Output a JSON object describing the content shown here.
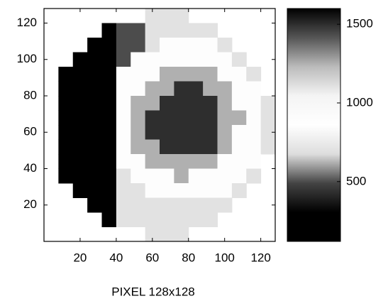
{
  "chart_data": {
    "type": "heatmap",
    "xlabel": "PIXEL 128x128",
    "xlim": [
      0,
      128
    ],
    "ylim": [
      0,
      128
    ],
    "xticks": [
      20,
      40,
      60,
      80,
      100,
      120
    ],
    "yticks": [
      20,
      40,
      60,
      80,
      100,
      120
    ],
    "x": [
      4,
      12,
      20,
      28,
      36,
      44,
      52,
      60,
      68,
      76,
      84,
      92,
      100,
      108,
      116,
      124
    ],
    "y": [
      4,
      12,
      20,
      28,
      36,
      44,
      52,
      60,
      68,
      76,
      84,
      92,
      100,
      108,
      116,
      124
    ],
    "z": [
      [
        null,
        null,
        null,
        null,
        null,
        null,
        null,
        700,
        700,
        700,
        null,
        null,
        null,
        null,
        null,
        null
      ],
      [
        null,
        null,
        null,
        null,
        250,
        500,
        500,
        700,
        700,
        700,
        700,
        700,
        null,
        null,
        null,
        null
      ],
      [
        null,
        null,
        null,
        250,
        250,
        500,
        500,
        700,
        900,
        900,
        900,
        900,
        700,
        null,
        null,
        null
      ],
      [
        null,
        null,
        250,
        250,
        250,
        500,
        900,
        900,
        900,
        900,
        900,
        900,
        900,
        700,
        null,
        null
      ],
      [
        null,
        250,
        250,
        250,
        250,
        900,
        900,
        900,
        1250,
        1250,
        1250,
        1250,
        900,
        900,
        700,
        null
      ],
      [
        null,
        250,
        250,
        250,
        250,
        900,
        900,
        1250,
        1250,
        1500,
        1500,
        1250,
        1250,
        900,
        900,
        null
      ],
      [
        null,
        250,
        250,
        250,
        250,
        900,
        1250,
        1250,
        1500,
        1500,
        1500,
        1500,
        1250,
        900,
        900,
        700
      ],
      [
        null,
        250,
        250,
        250,
        250,
        900,
        1250,
        1500,
        1500,
        1500,
        1500,
        1500,
        1250,
        1250,
        900,
        700
      ],
      [
        null,
        250,
        250,
        250,
        250,
        900,
        1250,
        1500,
        1500,
        1500,
        1500,
        1500,
        1250,
        900,
        900,
        700
      ],
      [
        null,
        250,
        250,
        250,
        250,
        900,
        1250,
        1250,
        1500,
        1500,
        1500,
        1500,
        1250,
        900,
        900,
        700
      ],
      [
        null,
        250,
        250,
        250,
        250,
        900,
        900,
        1250,
        1250,
        1250,
        1250,
        1250,
        900,
        900,
        900,
        null
      ],
      [
        null,
        250,
        250,
        250,
        250,
        700,
        900,
        900,
        900,
        1250,
        900,
        900,
        900,
        900,
        700,
        null
      ],
      [
        null,
        null,
        250,
        250,
        250,
        700,
        700,
        900,
        900,
        900,
        900,
        900,
        900,
        700,
        null,
        null
      ],
      [
        null,
        null,
        null,
        250,
        250,
        700,
        700,
        700,
        700,
        700,
        700,
        700,
        700,
        null,
        null,
        null
      ],
      [
        null,
        null,
        null,
        null,
        250,
        700,
        700,
        700,
        700,
        700,
        700,
        700,
        null,
        null,
        null,
        null
      ],
      [
        null,
        null,
        null,
        null,
        null,
        null,
        null,
        700,
        700,
        700,
        null,
        null,
        null,
        null,
        null,
        null
      ]
    ],
    "clim": [
      120,
      1600
    ],
    "cticks": [
      500,
      1000,
      1500
    ],
    "colormap": [
      "#000000",
      "#000000",
      "#444444",
      "#dddddd",
      "#ffffff",
      "#f4f4f4",
      "#bbbbbb",
      "#555555",
      "#000000"
    ]
  }
}
